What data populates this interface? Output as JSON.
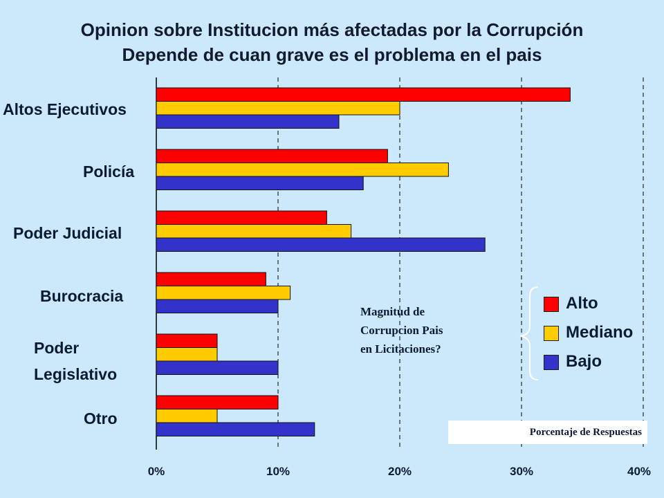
{
  "title_line1": "Opinion sobre Institucion más afectadas por la Corrupción",
  "title_line2": "Depende de cuan grave es el problema en el pais",
  "note_lines": [
    "Magnitud de",
    "Corrupcion Pais",
    "en Licitaciones?"
  ],
  "axis_caption": "Porcentaje de Respuestas",
  "colors": {
    "alto": "#ff0000",
    "mediano": "#ffcc00",
    "bajo": "#3333cc",
    "background": "#cce8fb"
  },
  "legend": [
    {
      "label": "Alto",
      "color": "#ff0000"
    },
    {
      "label": "Mediano",
      "color": "#ffcc00"
    },
    {
      "label": "Bajo",
      "color": "#3333cc"
    }
  ],
  "chart_data": {
    "type": "bar",
    "orientation": "horizontal",
    "categories": [
      "Altos Ejecutivos",
      "Policía",
      "Poder Judicial",
      "Burocracia",
      "Poder Legislativo",
      "Otro"
    ],
    "category_display": [
      [
        "Altos Ejecutivos"
      ],
      [
        "Policía"
      ],
      [
        "Poder Judicial"
      ],
      [
        "Burocracia"
      ],
      [
        "Poder",
        "Legislativo"
      ],
      [
        "Otro"
      ]
    ],
    "series": [
      {
        "name": "Alto",
        "color": "#ff0000",
        "values": [
          34,
          19,
          14,
          9,
          5,
          10
        ]
      },
      {
        "name": "Mediano",
        "color": "#ffcc00",
        "values": [
          20,
          24,
          16,
          11,
          5,
          5
        ]
      },
      {
        "name": "Bajo",
        "color": "#3333cc",
        "values": [
          15,
          17,
          27,
          10,
          10,
          13
        ]
      }
    ],
    "xlim": [
      0,
      40
    ],
    "xticks": [
      "0%",
      "10%",
      "20%",
      "30%",
      "40%"
    ],
    "xlabel": "Porcentaje de Respuestas",
    "grid": "vertical dashed",
    "legend_position": "right"
  }
}
